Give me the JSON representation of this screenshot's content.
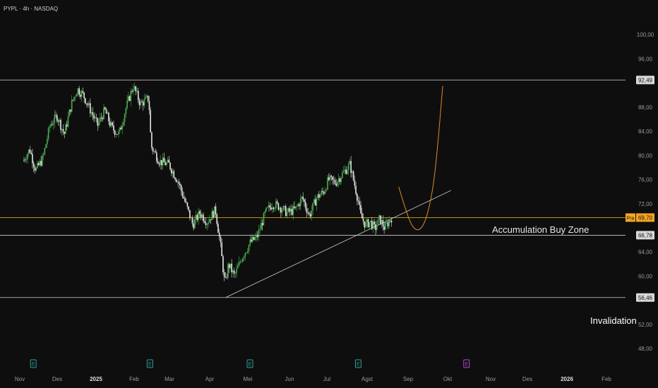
{
  "header": {
    "title": "PYPL · 4h · NASDAQ"
  },
  "colors": {
    "background": "#0e0e0e",
    "candle_up": "#4caf50",
    "candle_down": "#e6e6e6",
    "level_line": "#cfcfcf",
    "price_line": "#d4a017",
    "projection": "#e08a2c",
    "axis_text": "#9a9a9a",
    "price_tag": "#f5a623",
    "earnings_icon": "#26a69a",
    "earnings_icon_future": "#b04cd1"
  },
  "annotations": {
    "accumulation_label": "Accumulation Buy Zone",
    "invalidation_label": "Invalidation",
    "price_tag_symbol": "Pra",
    "earnings_icon_letter": "E"
  },
  "chart_data": {
    "type": "candlestick",
    "symbol": "PYPL",
    "interval": "4h",
    "exchange": "NASDAQ",
    "ylim": [
      46.5,
      102
    ],
    "y_ticks": [
      "100,00",
      "96,00",
      "92,49",
      "88,00",
      "84,00",
      "80,00",
      "76,00",
      "72,00",
      "69,70",
      "66,78",
      "64,00",
      "60,00",
      "56,46",
      "52,00",
      "48,00"
    ],
    "x_ticks": [
      "Nov",
      "Des",
      "2025",
      "Feb",
      "Mar",
      "Apr",
      "Mei",
      "Jun",
      "Jul",
      "Agst",
      "Sep",
      "Okt",
      "Nov",
      "Des",
      "2026",
      "Feb"
    ],
    "x_tick_bold": [
      "2025",
      "2026"
    ],
    "horizontal_levels": [
      {
        "value": 92.49,
        "label": "92,49"
      },
      {
        "value": 66.78,
        "label": "66,78"
      },
      {
        "value": 56.46,
        "label": "56,46"
      }
    ],
    "current_price": {
      "value": 69.7,
      "label": "69,70"
    },
    "trendline": {
      "from": [
        "Apr 9 2025",
        56.5
      ],
      "to": [
        "Okt 15 2025",
        74.2
      ]
    },
    "projection_curve": [
      [
        "Sep 1 2025",
        74.8
      ],
      [
        "Sep 6 2025",
        71.5
      ],
      [
        "Sep 12 2025",
        68.2
      ],
      [
        "Sep 18 2025",
        67.4
      ],
      [
        "Sep 24 2025",
        69.2
      ],
      [
        "Sep 30 2025",
        74.5
      ],
      [
        "Okt 4 2025",
        82.0
      ],
      [
        "Okt 8 2025",
        91.5
      ]
    ],
    "earnings_markers": [
      "Okt 29 2024",
      "Feb 4 2025",
      "Apr 29 2025",
      "Jul 29 2025",
      "Okt 28 2025"
    ],
    "price_path": [
      [
        "Okt 20 2024",
        79.0
      ],
      [
        "Okt 26 2024",
        81.0
      ],
      [
        "Okt 31 2024",
        77.5
      ],
      [
        "Nov 6 2024",
        79.5
      ],
      [
        "Nov 12 2024",
        85.0
      ],
      [
        "Nov 18 2024",
        86.5
      ],
      [
        "Nov 24 2024",
        83.5
      ],
      [
        "Nov 30 2024",
        88.5
      ],
      [
        "Des 5 2024",
        91.0
      ],
      [
        "Des 10 2024",
        90.0
      ],
      [
        "Des 16 2024",
        87.5
      ],
      [
        "Des 22 2024",
        85.0
      ],
      [
        "Des 28 2024",
        87.5
      ],
      [
        "Jan 3 2025",
        84.5
      ],
      [
        "Jan 9 2025",
        83.5
      ],
      [
        "Jan 15 2025",
        88.0
      ],
      [
        "Jan 21 2025",
        91.5
      ],
      [
        "Jan 27 2025",
        88.5
      ],
      [
        "Feb 3 2025",
        89.5
      ],
      [
        "Feb 5 2025",
        81.5
      ],
      [
        "Feb 12 2025",
        79.0
      ],
      [
        "Feb 20 2025",
        78.5
      ],
      [
        "Feb 28 2025",
        75.5
      ],
      [
        "Mar 6 2025",
        72.0
      ],
      [
        "Mar 12 2025",
        68.5
      ],
      [
        "Mar 18 2025",
        70.5
      ],
      [
        "Mar 24 2025",
        69.0
      ],
      [
        "Mar 31 2025",
        71.0
      ],
      [
        "Apr 4 2025",
        65.5
      ],
      [
        "Apr 8 2025",
        58.5
      ],
      [
        "Apr 11 2025",
        62.0
      ],
      [
        "Apr 16 2025",
        60.0
      ],
      [
        "Apr 22 2025",
        63.0
      ],
      [
        "Apr 29 2025",
        65.5
      ],
      [
        "Mei 5 2025",
        66.5
      ],
      [
        "Mei 12 2025",
        70.5
      ],
      [
        "Mei 18 2025",
        72.0
      ],
      [
        "Mei 24 2025",
        71.5
      ],
      [
        "Mei 30 2025",
        70.5
      ],
      [
        "Jun 6 2025",
        71.0
      ],
      [
        "Jun 12 2025",
        73.0
      ],
      [
        "Jun 18 2025",
        70.0
      ],
      [
        "Jun 24 2025",
        73.0
      ],
      [
        "Jun 30 2025",
        74.0
      ],
      [
        "Jul 4 2025",
        76.0
      ],
      [
        "Jul 10 2025",
        75.5
      ],
      [
        "Jul 16 2025",
        77.0
      ],
      [
        "Jul 22 2025",
        78.5
      ],
      [
        "Jul 29 2025",
        72.5
      ],
      [
        "Jul 31 2025",
        70.0
      ],
      [
        "Agst 4 2025",
        68.5
      ],
      [
        "Agst 8 2025",
        69.0
      ],
      [
        "Agst 12 2025",
        67.8
      ],
      [
        "Agst 16 2025",
        69.5
      ],
      [
        "Agst 20 2025",
        68.0
      ],
      [
        "Agst 26 2025",
        69.7
      ]
    ]
  }
}
